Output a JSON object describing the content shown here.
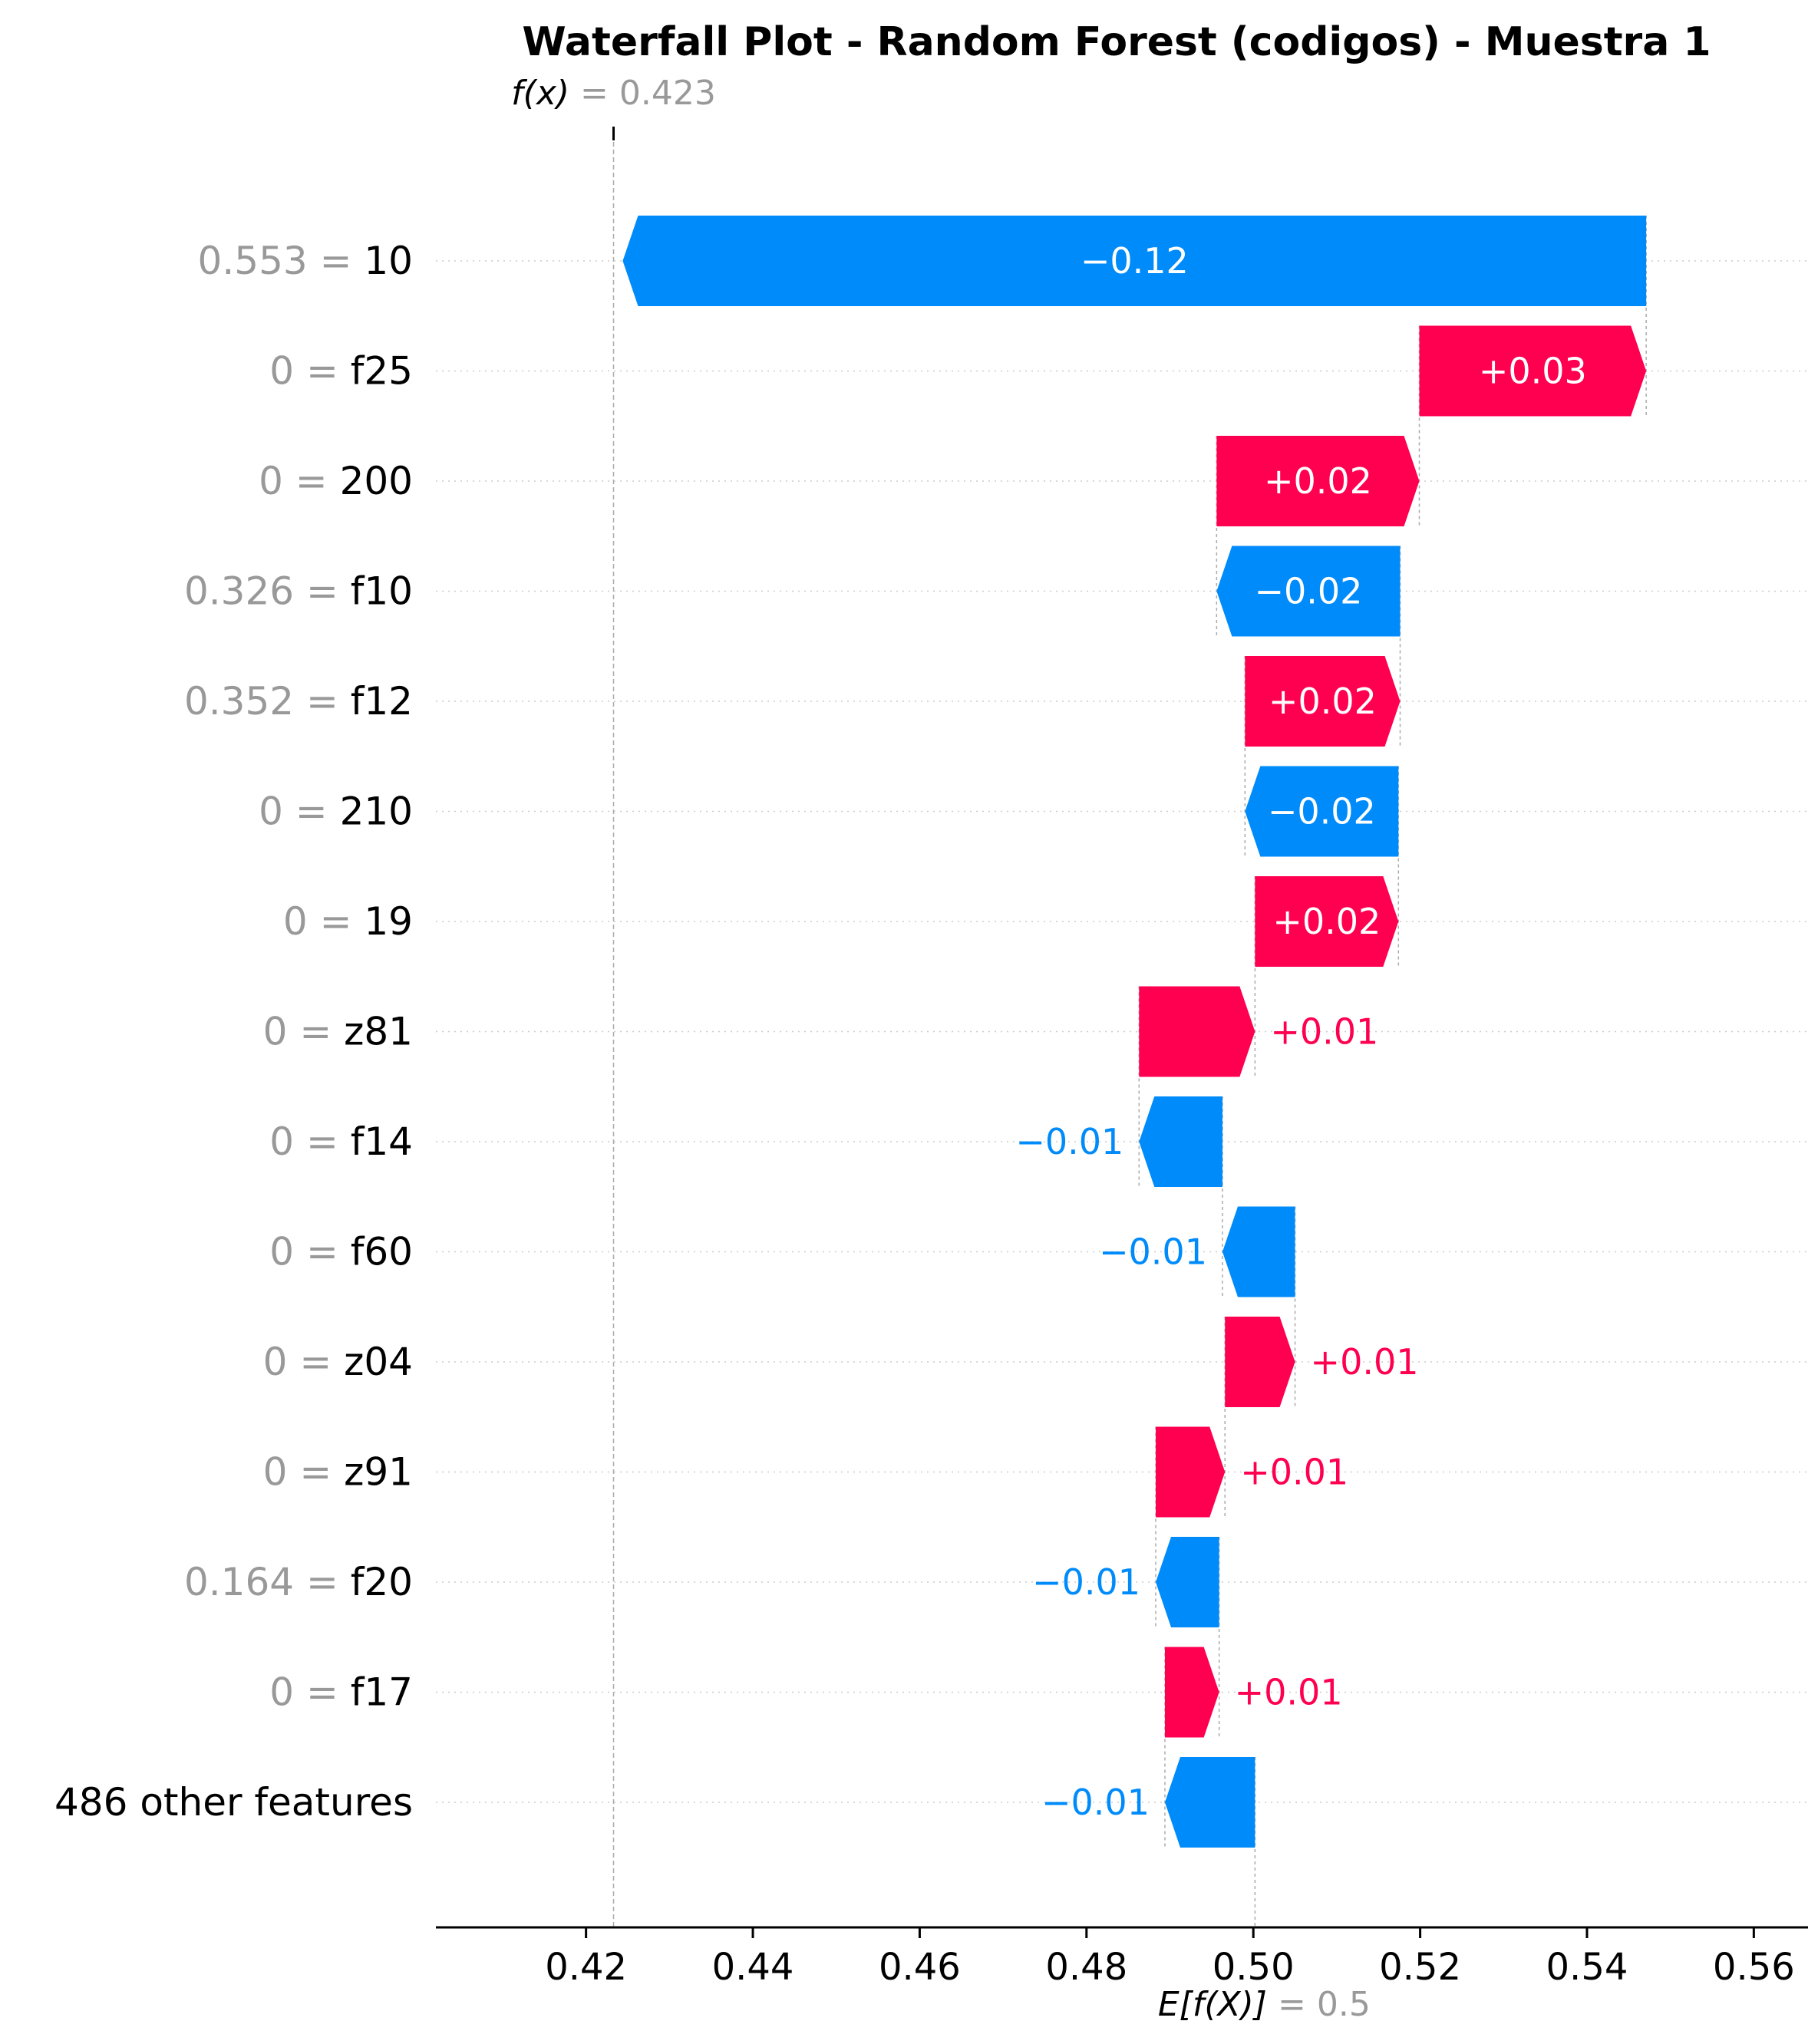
{
  "chart_data": {
    "type": "waterfall",
    "title": "Waterfall Plot - Random Forest (codigos) - Muestra 1",
    "fx_label": "f(x)",
    "fx_value": "0.423",
    "fx_numeric": 0.4233,
    "base_label": "E[f(X)]",
    "base_value": "0.5",
    "base_numeric": 0.5002,
    "xlim": [
      0.402,
      0.5665
    ],
    "xticks": [
      0.42,
      0.44,
      0.46,
      0.48,
      0.5,
      0.52,
      0.54,
      0.56
    ],
    "xtick_labels": [
      "0.42",
      "0.44",
      "0.46",
      "0.48",
      "0.50",
      "0.52",
      "0.54",
      "0.56"
    ],
    "colors": {
      "positive": "#ff0051",
      "negative": "#008bfb",
      "muted": "#999999"
    },
    "features": [
      {
        "value": "0.553",
        "name": "10",
        "contribution": -0.1227,
        "label": "−0.12"
      },
      {
        "value": "0",
        "name": "f25",
        "contribution": 0.0272,
        "label": "+0.03"
      },
      {
        "value": "0",
        "name": "200",
        "contribution": 0.0243,
        "label": "+0.02"
      },
      {
        "value": "0.326",
        "name": "f10",
        "contribution": -0.022,
        "label": "−0.02"
      },
      {
        "value": "0.352",
        "name": "f12",
        "contribution": 0.0186,
        "label": "+0.02"
      },
      {
        "value": "0",
        "name": "210",
        "contribution": -0.0184,
        "label": "−0.02"
      },
      {
        "value": "0",
        "name": "19",
        "contribution": 0.0172,
        "label": "+0.02"
      },
      {
        "value": "0",
        "name": "z81",
        "contribution": 0.0139,
        "label": "+0.01"
      },
      {
        "value": "0",
        "name": "f14",
        "contribution": -0.01,
        "label": "−0.01"
      },
      {
        "value": "0",
        "name": "f60",
        "contribution": -0.0087,
        "label": "−0.01"
      },
      {
        "value": "0",
        "name": "z04",
        "contribution": 0.0084,
        "label": "+0.01"
      },
      {
        "value": "0",
        "name": "z91",
        "contribution": 0.0083,
        "label": "+0.01"
      },
      {
        "value": "0.164",
        "name": "f20",
        "contribution": -0.0076,
        "label": "−0.01"
      },
      {
        "value": "0",
        "name": "f17",
        "contribution": 0.0065,
        "label": "+0.01"
      },
      {
        "value": "",
        "name": "486 other features",
        "contribution": -0.0108,
        "label": "−0.01"
      }
    ]
  }
}
